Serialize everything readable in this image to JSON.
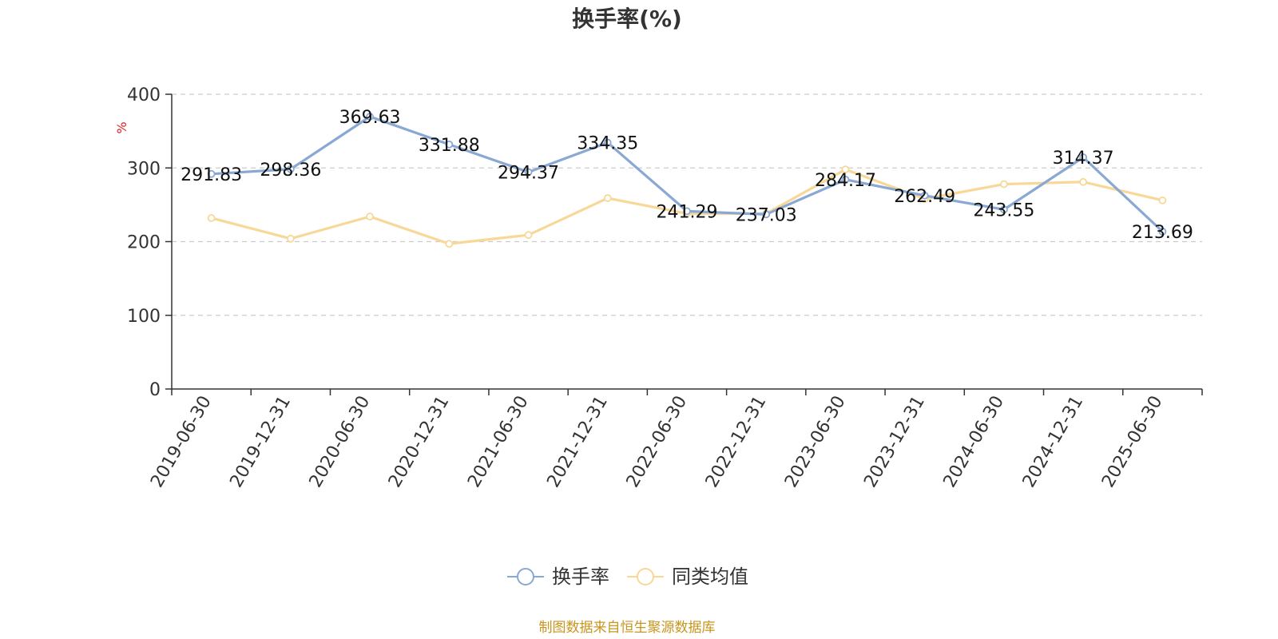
{
  "chart_data": {
    "type": "line",
    "title": "换手率(%)",
    "xlabel": "",
    "ylabel": "%",
    "ylim": [
      0,
      400
    ],
    "y_ticks": [
      0,
      100,
      200,
      300,
      400
    ],
    "grid": true,
    "legend_position": "bottom-center",
    "categories": [
      "2019-06-30",
      "2019-12-31",
      "2020-06-30",
      "2020-12-31",
      "2021-06-30",
      "2021-12-31",
      "2022-06-30",
      "2022-12-31",
      "2023-06-30",
      "2023-12-31",
      "2024-06-30",
      "2024-12-31",
      "2025-06-30"
    ],
    "series": [
      {
        "name": "换手率",
        "color": "#8aa8d4",
        "values": [
          291.83,
          298.36,
          369.63,
          331.88,
          294.37,
          334.35,
          241.29,
          237.03,
          284.17,
          262.49,
          243.55,
          314.37,
          213.69
        ],
        "data_labels": [
          "291.83",
          "298.36",
          "369.63",
          "331.88",
          "294.37",
          "334.35",
          "241.29",
          "237.03",
          "284.17",
          "262.49",
          "243.55",
          "314.37",
          "213.69"
        ]
      },
      {
        "name": "同类均值",
        "color": "#f8d898",
        "values": [
          232,
          204,
          234,
          197,
          209,
          259,
          238,
          238,
          298,
          258,
          278,
          281,
          256
        ]
      }
    ],
    "source": "制图数据来自恒生聚源数据库"
  }
}
